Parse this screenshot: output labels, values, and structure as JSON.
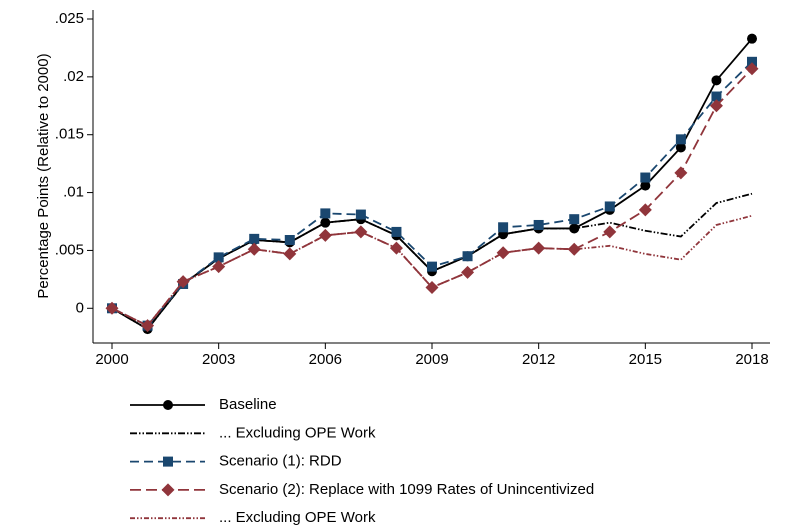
{
  "chart_data": {
    "type": "line",
    "y_label": "Percentage Points (Relative to 2000)",
    "x": [
      2000,
      2001,
      2002,
      2003,
      2004,
      2005,
      2006,
      2007,
      2008,
      2009,
      2010,
      2011,
      2012,
      2013,
      2014,
      2015,
      2016,
      2017,
      2018
    ],
    "xlim": [
      2000,
      2018
    ],
    "xticks": [
      2000,
      2003,
      2006,
      2009,
      2012,
      2015,
      2018
    ],
    "ylim": [
      -0.003,
      0.025
    ],
    "yticks": [
      {
        "value": 0.025,
        "label": ".025"
      },
      {
        "value": 0.02,
        "label": ".02"
      },
      {
        "value": 0.015,
        "label": ".015"
      },
      {
        "value": 0.01,
        "label": ".01"
      },
      {
        "value": 0.005,
        "label": ".005"
      },
      0
    ],
    "series": [
      {
        "name": "Baseline",
        "color": "#000000",
        "dash": "none",
        "marker": "circle",
        "values": [
          0,
          -0.0018,
          0.0021,
          0.0043,
          0.0059,
          0.0057,
          0.0074,
          0.0077,
          0.0063,
          0.0032,
          0.0045,
          0.0064,
          0.0069,
          0.0069,
          0.0085,
          0.0106,
          0.0139,
          0.0197,
          0.0233
        ]
      },
      {
        "name": "... Excluding OPE Work",
        "color": "#000000",
        "dash": "7 2 1.5 2 1.5 2",
        "marker": "none",
        "values": [
          0,
          -0.0018,
          0.0021,
          0.0043,
          0.0059,
          0.0057,
          0.0074,
          0.0077,
          0.0063,
          0.0032,
          0.0045,
          0.0064,
          0.0069,
          0.0069,
          0.0074,
          0.0067,
          0.0062,
          0.0091,
          0.0099
        ]
      },
      {
        "name": "Scenario (1): RDD",
        "color": "#1a476f",
        "dash": "9 5",
        "marker": "square",
        "values": [
          0,
          -0.0015,
          0.0021,
          0.0044,
          0.006,
          0.0059,
          0.0082,
          0.0081,
          0.0066,
          0.0036,
          0.0045,
          0.007,
          0.0072,
          0.0077,
          0.0088,
          0.0113,
          0.0146,
          0.0183,
          0.0213
        ]
      },
      {
        "name": "Scenario (2): Replace with 1099 Rates of Unincentivized",
        "color": "#90353b",
        "dash": "11 5",
        "marker": "diamond",
        "values": [
          0,
          -0.0015,
          0.0023,
          0.0036,
          0.0051,
          0.0047,
          0.0063,
          0.0066,
          0.0052,
          0.0018,
          0.0031,
          0.0048,
          0.0052,
          0.0051,
          0.0066,
          0.0085,
          0.0117,
          0.0175,
          0.0207
        ]
      },
      {
        "name": "... Excluding OPE Work",
        "color": "#90353b",
        "dash": "5 2 1.5 2 1.5 2",
        "marker": "none",
        "values": [
          0,
          -0.0015,
          0.0023,
          0.0036,
          0.0051,
          0.0047,
          0.0063,
          0.0066,
          0.0052,
          0.0018,
          0.0031,
          0.0048,
          0.0052,
          0.0051,
          0.0054,
          0.0047,
          0.0042,
          0.0072,
          0.008
        ]
      }
    ]
  }
}
